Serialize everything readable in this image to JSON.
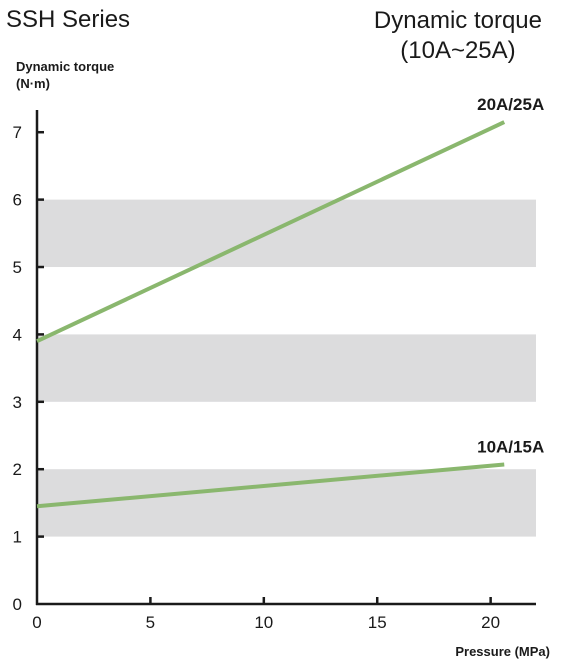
{
  "header": {
    "series_title": "SSH Series",
    "chart_title_line1": "Dynamic torque",
    "chart_title_line2": "(10A~25A)"
  },
  "colors": {
    "line": "#8ab76e",
    "band": "#dcdcdd",
    "axis": "#1a1a1a"
  },
  "chart_data": {
    "type": "line",
    "title": "Dynamic torque (10A~25A)",
    "ylabel_line1": "Dynamic torque",
    "ylabel_line2": "(N·m)",
    "xlabel": "Pressure (MPa)",
    "xlim": [
      0,
      22
    ],
    "ylim": [
      0,
      7.3
    ],
    "x_ticks": [
      0,
      5,
      10,
      15,
      20
    ],
    "y_ticks": [
      0,
      1,
      2,
      3,
      4,
      5,
      6,
      7
    ],
    "shaded_bands": [
      [
        1,
        2
      ],
      [
        3,
        4
      ],
      [
        5,
        6
      ]
    ],
    "grid": false,
    "series": [
      {
        "name": "20A/25A",
        "x": [
          0,
          20.6
        ],
        "y": [
          3.9,
          7.15
        ]
      },
      {
        "name": "10A/15A",
        "x": [
          0,
          20.6
        ],
        "y": [
          1.45,
          2.07
        ]
      }
    ]
  }
}
